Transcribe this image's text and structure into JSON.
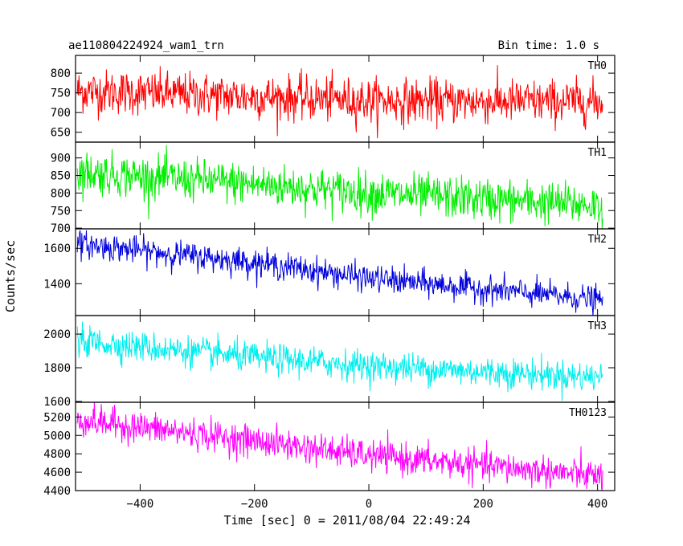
{
  "header": {
    "title": "ae110804224924_wam1_trn",
    "bin_time": "Bin time: 1.0 s"
  },
  "chart_data": {
    "type": "line",
    "xlabel": "Time [sec] 0 = 2011/08/04 22:49:24",
    "ylabel": "Counts/sec",
    "xlim": [
      -513,
      430
    ],
    "x_ticks": [
      -400,
      -200,
      0,
      200,
      400
    ],
    "x_range_of_data": [
      -510,
      409
    ],
    "panels": [
      {
        "name": "TH0",
        "color": "#ff0000",
        "ylim": [
          625,
          845
        ],
        "y_ticks": [
          650,
          700,
          750,
          800
        ],
        "trend": [
          [
            -510,
            755
          ],
          [
            -200,
            740
          ],
          [
            0,
            730
          ],
          [
            400,
            727
          ]
        ],
        "scatter": 28
      },
      {
        "name": "TH1",
        "color": "#00ee00",
        "ylim": [
          698,
          945
        ],
        "y_ticks": [
          700,
          750,
          800,
          850,
          900
        ],
        "trend": [
          [
            -510,
            860
          ],
          [
            -200,
            825
          ],
          [
            0,
            800
          ],
          [
            400,
            765
          ]
        ],
        "scatter": 30
      },
      {
        "name": "TH2",
        "color": "#0000dd",
        "ylim": [
          1220,
          1710
        ],
        "y_ticks": [
          1400,
          1600
        ],
        "trend": [
          [
            -510,
            1625
          ],
          [
            -200,
            1520
          ],
          [
            0,
            1430
          ],
          [
            400,
            1310
          ]
        ],
        "scatter": 38
      },
      {
        "name": "TH3",
        "color": "#00eeee",
        "ylim": [
          1595,
          2110
        ],
        "y_ticks": [
          1600,
          1800,
          2000
        ],
        "trend": [
          [
            -510,
            1960
          ],
          [
            -200,
            1860
          ],
          [
            0,
            1810
          ],
          [
            400,
            1745
          ]
        ],
        "scatter": 45
      },
      {
        "name": "TH0123",
        "color": "#ff00ff",
        "ylim": [
          4400,
          5360
        ],
        "y_ticks": [
          4400,
          4600,
          4800,
          5000,
          5200
        ],
        "trend": [
          [
            -510,
            5170
          ],
          [
            -200,
            4940
          ],
          [
            0,
            4780
          ],
          [
            400,
            4560
          ]
        ],
        "scatter": 85
      }
    ]
  }
}
